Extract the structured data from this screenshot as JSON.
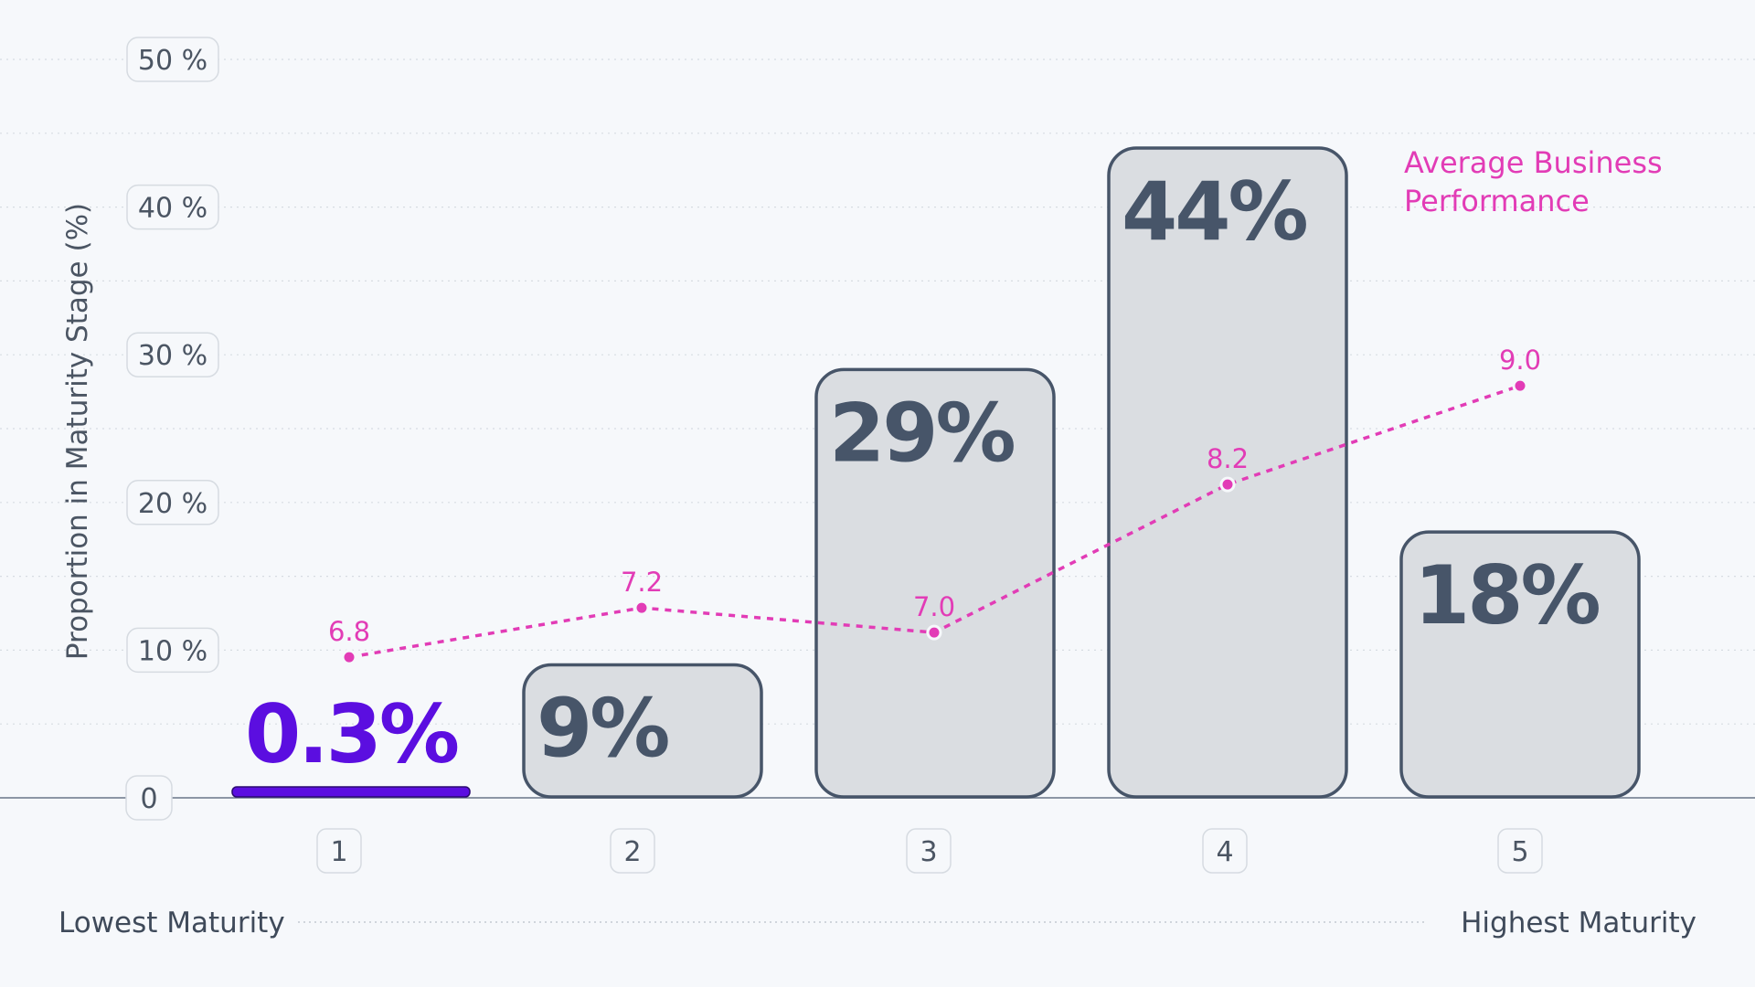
{
  "chart_data": {
    "type": "bar",
    "ylabel": "Proportion in Maturity Stage (%)",
    "ylim": [
      0,
      50
    ],
    "y_ticks": [
      "0",
      "10 %",
      "20 %",
      "30 %",
      "40 %",
      "50 %"
    ],
    "y_tick_values": [
      0,
      10,
      20,
      30,
      40,
      50
    ],
    "grid": true,
    "categories": [
      "1",
      "2",
      "3",
      "4",
      "5"
    ],
    "values": [
      0.3,
      9,
      29,
      44,
      18
    ],
    "bar_labels": [
      "0.3%",
      "9%",
      "29%",
      "44%",
      "18%"
    ],
    "highlight_index": 0,
    "line_series": {
      "name": "Average Business Performance",
      "name_lines": [
        "Average Business",
        "Performance"
      ],
      "values": [
        6.8,
        7.2,
        7.0,
        8.2,
        9.0
      ],
      "labels": [
        "6.8",
        "7.2",
        "7.0",
        "8.2",
        "9.0"
      ]
    },
    "x_axis_endpoints": {
      "left": "Lowest Maturity",
      "right": "Highest Maturity"
    },
    "colors": {
      "bar_fill": "#dadde1",
      "bar_stroke": "#475569",
      "highlight": "#5b0ee0",
      "line": "#e23cb6",
      "background": "#f6f8fb"
    }
  }
}
